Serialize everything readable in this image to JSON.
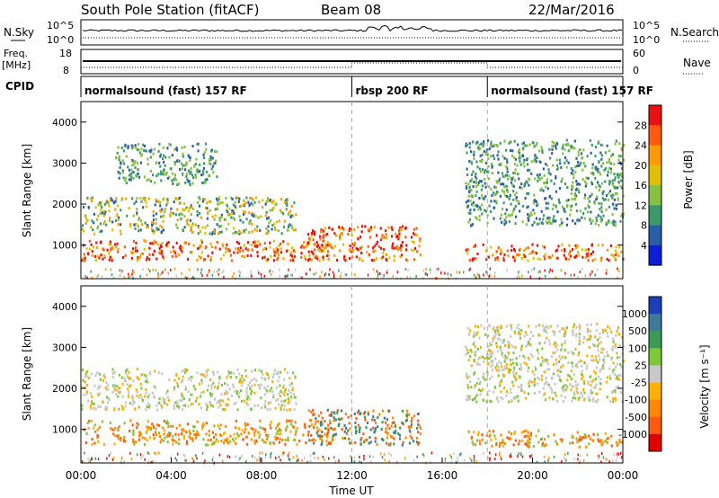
{
  "header": {
    "station": "South Pole Station (fitACF)",
    "beam": "Beam 08",
    "date": "22/Mar/2016"
  },
  "strips": {
    "nsky_label": "N.Sky",
    "nsky_top_tick": "10^5",
    "nsky_bottom_tick": "10^0",
    "nsky_right_top_tick": "10^5",
    "nsky_right_bottom_tick": "10^0",
    "nsearch_label": "N.Search",
    "freq_label_line1": "Freq.",
    "freq_label_line2": "[MHz]",
    "freq_top_tick": "18",
    "freq_bottom_tick": "8",
    "nave_top_tick": "60",
    "nave_bottom_tick": "0",
    "nave_label": "Nave",
    "cpid_label": "CPID"
  },
  "cpid_segments": [
    {
      "label": "normalsound (fast) 157 RF",
      "start_hour": 0
    },
    {
      "label": "rbsp 200 RF",
      "start_hour": 12
    },
    {
      "label": "normalsound (fast) 157 RF",
      "start_hour": 18
    }
  ],
  "colorbars": {
    "power": {
      "title": "Power [dB]",
      "ticks": [
        "28",
        "24",
        "20",
        "16",
        "12",
        "8",
        "4"
      ],
      "colors": [
        "#e81010",
        "#ff5a10",
        "#ff9a00",
        "#e0c000",
        "#88c040",
        "#3c9a6a",
        "#2a5fa8",
        "#0c1ed8"
      ]
    },
    "velocity": {
      "title": "Velocity [m s⁻¹]",
      "ticks": [
        "1000",
        "500",
        "100",
        "25",
        "-25",
        "-100",
        "-500",
        "-1000"
      ],
      "colors": [
        "#1a3fb8",
        "#3f7a9a",
        "#3d9a55",
        "#7ec83a",
        "#c8c8c8",
        "#ffb000",
        "#ff8800",
        "#ff5a10",
        "#e00000"
      ]
    }
  },
  "chart_data": [
    {
      "type": "heatmap",
      "panel": "power",
      "xlabel": "",
      "ylabel": "Slant Range [km]",
      "x_unit": "hours UT",
      "xlim": [
        0,
        24
      ],
      "ylim": [
        180,
        4500
      ],
      "yticks": [
        "1000",
        "2000",
        "3000",
        "4000"
      ],
      "yticks_values": [
        1000,
        2000,
        3000,
        4000
      ],
      "dashed_markers_hour": [
        12,
        18
      ],
      "echo_bands": [
        {
          "t0": 0.0,
          "t1": 11.0,
          "r0": 650,
          "r1": 1150,
          "level": "strong"
        },
        {
          "t0": 10.0,
          "t1": 15.0,
          "r0": 650,
          "r1": 1500,
          "level": "strong"
        },
        {
          "t0": 0.0,
          "t1": 9.5,
          "r0": 1300,
          "r1": 2200,
          "level": "moderate"
        },
        {
          "t0": 1.5,
          "t1": 6.0,
          "r0": 2500,
          "r1": 3500,
          "level": "weak"
        },
        {
          "t0": 17.0,
          "t1": 24.0,
          "r0": 650,
          "r1": 1050,
          "level": "strong"
        },
        {
          "t0": 17.0,
          "t1": 24.0,
          "r0": 1500,
          "r1": 3600,
          "level": "weak"
        }
      ]
    },
    {
      "type": "heatmap",
      "panel": "velocity",
      "xlabel": "Time UT",
      "ylabel": "Slant Range [km]",
      "x_unit": "hours UT",
      "xlim": [
        0,
        24
      ],
      "ylim": [
        180,
        4500
      ],
      "xticks": [
        "00:00",
        "04:00",
        "08:00",
        "12:00",
        "16:00",
        "20:00",
        "00:00"
      ],
      "xticks_values": [
        0,
        4,
        8,
        12,
        16,
        20,
        24
      ],
      "yticks": [
        "1000",
        "2000",
        "3000",
        "4000"
      ],
      "yticks_values": [
        1000,
        2000,
        3000,
        4000
      ],
      "dashed_markers_hour": [
        12,
        18
      ],
      "echo_bands": [
        {
          "t0": 0.0,
          "t1": 11.0,
          "r0": 650,
          "r1": 1250,
          "sign": "negative"
        },
        {
          "t0": 10.0,
          "t1": 15.0,
          "r0": 650,
          "r1": 1500,
          "sign": "mixed"
        },
        {
          "t0": 0.0,
          "t1": 9.5,
          "r0": 1500,
          "r1": 2500,
          "sign": "near-zero"
        },
        {
          "t0": 17.0,
          "t1": 24.0,
          "r0": 600,
          "r1": 1000,
          "sign": "negative"
        },
        {
          "t0": 17.0,
          "t1": 24.0,
          "r0": 1700,
          "r1": 3600,
          "sign": "near-zero"
        }
      ]
    }
  ]
}
